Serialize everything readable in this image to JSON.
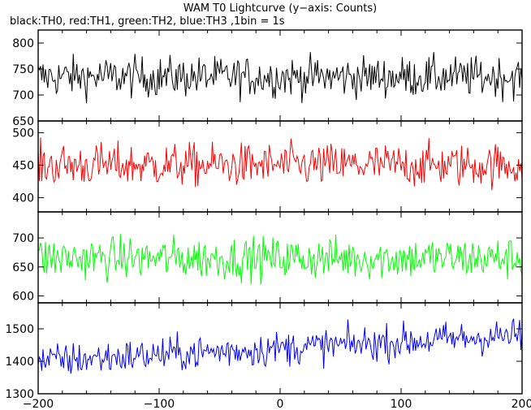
{
  "header": {
    "title": "WAM T0 Lightcurve (y−axis: Counts)",
    "subtitle": "black:TH0, red:TH1, green:TH2, blue:TH3 ,1bin = 1s"
  },
  "chart_data": [
    {
      "type": "line",
      "name": "TH0",
      "color": "#000000",
      "xlim": [
        -200,
        200
      ],
      "ylim": [
        650,
        825
      ],
      "yticks": [
        650,
        700,
        750,
        800
      ],
      "x_step": 1,
      "mean": 735,
      "noise_amplitude": 35,
      "trend": [
        0,
        0
      ],
      "grid": false
    },
    {
      "type": "line",
      "name": "TH1",
      "color": "#ff0000",
      "xlim": [
        -200,
        200
      ],
      "ylim": [
        378,
        518
      ],
      "yticks": [
        400,
        450,
        500
      ],
      "x_step": 1,
      "mean": 450,
      "noise_amplitude": 30,
      "trend": [
        0,
        0
      ],
      "grid": false
    },
    {
      "type": "line",
      "name": "TH2",
      "color": "#00ff00",
      "xlim": [
        -200,
        200
      ],
      "ylim": [
        588,
        745
      ],
      "yticks": [
        600,
        650,
        700
      ],
      "x_step": 1,
      "mean": 665,
      "noise_amplitude": 33,
      "trend": [
        0,
        0
      ],
      "grid": false
    },
    {
      "type": "line",
      "name": "TH3",
      "color": "#0000ff",
      "xlim": [
        -200,
        200
      ],
      "ylim": [
        1300,
        1580
      ],
      "yticks": [
        1300,
        1400,
        1500
      ],
      "x_step": 1,
      "mean": 1440,
      "noise_amplitude": 48,
      "trend": [
        -40,
        40
      ],
      "grid": false
    }
  ],
  "x_axis": {
    "range": [
      -200,
      200
    ],
    "ticks": [
      -200,
      -100,
      0,
      100,
      200
    ]
  }
}
